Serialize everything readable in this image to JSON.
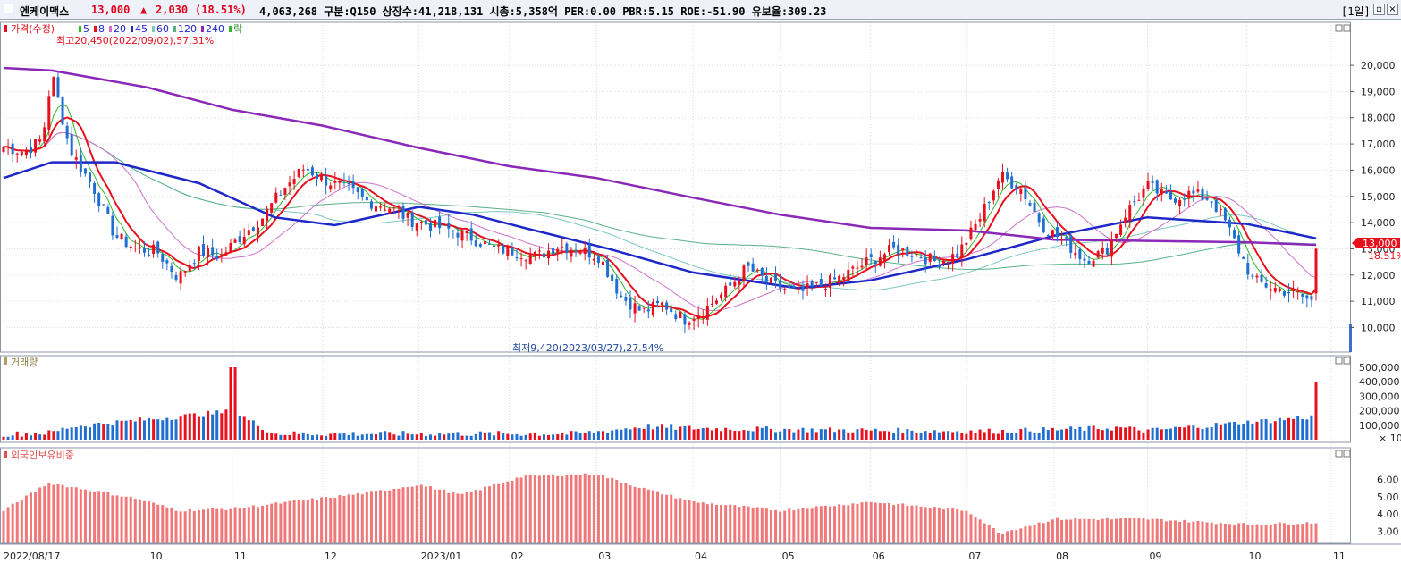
{
  "header": {
    "name": "엔케이맥스",
    "price": "13,000",
    "change_arrow": "▲",
    "change": "2,030",
    "change_pct": "(18.51%)",
    "info": "4,063,268  구분:Q150 상장수:41,218,131 시총:5,358억 PER:0.00 PBR:5.15 ROE:-51.90 유보율:309.23",
    "period": "[1일]"
  },
  "price_legend": {
    "label": "가격(수정)",
    "ma": [
      {
        "label": "5",
        "color": "#2db82d"
      },
      {
        "label": "8",
        "color": "#e8101c"
      },
      {
        "label": "20",
        "color": "#d070c8"
      },
      {
        "label": "45",
        "color": "#1e28c8"
      },
      {
        "label": "60",
        "color": "#7cc8c0"
      },
      {
        "label": "120",
        "color": "#58b088"
      },
      {
        "label": "240",
        "color": "#8a28b8"
      }
    ],
    "extra": "락"
  },
  "volume_legend": "거래량",
  "foreign_legend": "외국인보유비중",
  "annotations": {
    "high": "최고20,450(2022/09/02),57.31%",
    "low": "최저9,420(2023/03/27),27.54%"
  },
  "price_ticks": [
    "20,000",
    "19,000",
    "18,000",
    "17,000",
    "16,000",
    "15,000",
    "14,000",
    "13,000",
    "12,000",
    "11,000",
    "10,000"
  ],
  "current_label": "13,000",
  "current_pct": "18.51%",
  "volume_ticks": [
    "500,000",
    "400,000",
    "300,000",
    "200,000",
    "100,000"
  ],
  "volume_unit": "× 10",
  "foreign_ticks": [
    "6.00",
    "5.00",
    "4.00",
    "3.00"
  ],
  "x_labels": [
    "2022/08/17",
    "10",
    "11",
    "12",
    "2023/01",
    "02",
    "03",
    "04",
    "05",
    "06",
    "07",
    "08",
    "09",
    "10",
    "11"
  ],
  "colors": {
    "up": "#e8101c",
    "down": "#1f6fd0",
    "ma5": "#2db82d",
    "ma8": "#e8101c",
    "ma20": "#d070c8",
    "ma45": "#1e28c8",
    "ma60": "#7cc8c0",
    "ma120": "#58b088",
    "ma240": "#8a28b8",
    "foreign": "#f07878"
  },
  "chart_data": {
    "type": "line",
    "title": "",
    "x_start": "2022/08/17",
    "x_end": "2023/10/27",
    "y_range": [
      9300,
      20650
    ],
    "close_trace": [
      {
        "date": "2022-08-17",
        "close": 16900
      },
      {
        "date": "2022-08-24",
        "close": 16700
      },
      {
        "date": "2022-08-30",
        "close": 17200
      },
      {
        "date": "2022-09-02",
        "close": 19700
      },
      {
        "date": "2022-09-08",
        "close": 16800
      },
      {
        "date": "2022-09-16",
        "close": 15300
      },
      {
        "date": "2022-09-23",
        "close": 13500
      },
      {
        "date": "2022-09-30",
        "close": 13000
      },
      {
        "date": "2022-10-07",
        "close": 12900
      },
      {
        "date": "2022-10-14",
        "close": 11900
      },
      {
        "date": "2022-10-21",
        "close": 12900
      },
      {
        "date": "2022-10-28",
        "close": 12700
      },
      {
        "date": "2022-11-04",
        "close": 13500
      },
      {
        "date": "2022-11-11",
        "close": 14200
      },
      {
        "date": "2022-11-18",
        "close": 15300
      },
      {
        "date": "2022-11-25",
        "close": 16100
      },
      {
        "date": "2022-12-02",
        "close": 15600
      },
      {
        "date": "2022-12-09",
        "close": 15300
      },
      {
        "date": "2022-12-16",
        "close": 14800
      },
      {
        "date": "2022-12-23",
        "close": 14600
      },
      {
        "date": "2022-12-30",
        "close": 14100
      },
      {
        "date": "2023-01-06",
        "close": 13900
      },
      {
        "date": "2023-01-13",
        "close": 13700
      },
      {
        "date": "2023-01-20",
        "close": 13400
      },
      {
        "date": "2023-01-27",
        "close": 13000
      },
      {
        "date": "2023-02-03",
        "close": 12900
      },
      {
        "date": "2023-02-10",
        "close": 12700
      },
      {
        "date": "2023-02-17",
        "close": 13100
      },
      {
        "date": "2023-02-24",
        "close": 13000
      },
      {
        "date": "2023-03-03",
        "close": 12700
      },
      {
        "date": "2023-03-10",
        "close": 11200
      },
      {
        "date": "2023-03-17",
        "close": 10600
      },
      {
        "date": "2023-03-24",
        "close": 10900
      },
      {
        "date": "2023-03-31",
        "close": 10300
      },
      {
        "date": "2023-04-07",
        "close": 10700
      },
      {
        "date": "2023-04-14",
        "close": 11400
      },
      {
        "date": "2023-04-21",
        "close": 12300
      },
      {
        "date": "2023-04-28",
        "close": 11700
      },
      {
        "date": "2023-05-08",
        "close": 11300
      },
      {
        "date": "2023-05-15",
        "close": 11600
      },
      {
        "date": "2023-05-22",
        "close": 11900
      },
      {
        "date": "2023-05-31",
        "close": 12500
      },
      {
        "date": "2023-06-09",
        "close": 13000
      },
      {
        "date": "2023-06-16",
        "close": 12800
      },
      {
        "date": "2023-06-23",
        "close": 12500
      },
      {
        "date": "2023-06-30",
        "close": 12800
      },
      {
        "date": "2023-07-07",
        "close": 14100
      },
      {
        "date": "2023-07-14",
        "close": 15800
      },
      {
        "date": "2023-07-21",
        "close": 15300
      },
      {
        "date": "2023-07-28",
        "close": 13900
      },
      {
        "date": "2023-08-04",
        "close": 13300
      },
      {
        "date": "2023-08-11",
        "close": 12600
      },
      {
        "date": "2023-08-18",
        "close": 12900
      },
      {
        "date": "2023-08-25",
        "close": 14400
      },
      {
        "date": "2023-09-01",
        "close": 15400
      },
      {
        "date": "2023-09-08",
        "close": 14900
      },
      {
        "date": "2023-09-15",
        "close": 15100
      },
      {
        "date": "2023-09-22",
        "close": 14900
      },
      {
        "date": "2023-09-27",
        "close": 14000
      },
      {
        "date": "2023-10-06",
        "close": 11800
      },
      {
        "date": "2023-10-13",
        "close": 11500
      },
      {
        "date": "2023-10-20",
        "close": 11300
      },
      {
        "date": "2023-10-26",
        "close": 10970
      },
      {
        "date": "2023-10-27",
        "close": 13000
      }
    ],
    "ma240_trace": [
      {
        "date": "2022-08-17",
        "value": 19900
      },
      {
        "date": "2022-09-02",
        "value": 19800
      },
      {
        "date": "2022-10-04",
        "value": 19150
      },
      {
        "date": "2022-11-01",
        "value": 18300
      },
      {
        "date": "2022-12-01",
        "value": 17700
      },
      {
        "date": "2023-01-02",
        "value": 16850
      },
      {
        "date": "2023-02-01",
        "value": 16150
      },
      {
        "date": "2023-03-02",
        "value": 15700
      },
      {
        "date": "2023-04-03",
        "value": 14950
      },
      {
        "date": "2023-05-02",
        "value": 14300
      },
      {
        "date": "2023-06-01",
        "value": 13800
      },
      {
        "date": "2023-07-03",
        "value": 13700
      },
      {
        "date": "2023-08-01",
        "value": 13350
      },
      {
        "date": "2023-09-01",
        "value": 13300
      },
      {
        "date": "2023-10-04",
        "value": 13250
      },
      {
        "date": "2023-10-27",
        "value": 13150
      }
    ],
    "ma45_trace": [
      {
        "date": "2022-08-17",
        "value": 15700
      },
      {
        "date": "2022-09-02",
        "value": 16300
      },
      {
        "date": "2022-09-23",
        "value": 16300
      },
      {
        "date": "2022-10-21",
        "value": 15500
      },
      {
        "date": "2022-11-15",
        "value": 14200
      },
      {
        "date": "2022-12-05",
        "value": 13900
      },
      {
        "date": "2023-01-02",
        "value": 14600
      },
      {
        "date": "2023-01-20",
        "value": 14300
      },
      {
        "date": "2023-02-06",
        "value": 13800
      },
      {
        "date": "2023-03-06",
        "value": 13000
      },
      {
        "date": "2023-04-03",
        "value": 12100
      },
      {
        "date": "2023-05-08",
        "value": 11500
      },
      {
        "date": "2023-06-01",
        "value": 11800
      },
      {
        "date": "2023-07-03",
        "value": 12600
      },
      {
        "date": "2023-08-01",
        "value": 13500
      },
      {
        "date": "2023-09-01",
        "value": 14200
      },
      {
        "date": "2023-10-04",
        "value": 13950
      },
      {
        "date": "2023-10-27",
        "value": 13400
      }
    ],
    "volume_trace": [
      {
        "date": "2022-08-17",
        "value": 50000
      },
      {
        "date": "2022-09-02",
        "value": 80000
      },
      {
        "date": "2022-09-08",
        "value": 200000
      },
      {
        "date": "2022-11-01",
        "value": 500000
      },
      {
        "date": "2022-11-15",
        "value": 60000
      },
      {
        "date": "2023-02-24",
        "value": 60000
      },
      {
        "date": "2023-03-17",
        "value": 200000
      },
      {
        "date": "2023-03-27",
        "value": 180000
      },
      {
        "date": "2023-04-14",
        "value": 160000
      },
      {
        "date": "2023-06-09",
        "value": 120000
      },
      {
        "date": "2023-07-14",
        "value": 110000
      },
      {
        "date": "2023-08-23",
        "value": 180000
      },
      {
        "date": "2023-09-01",
        "value": 120000
      },
      {
        "date": "2023-10-27",
        "value": 400000
      }
    ],
    "foreign_trace": [
      {
        "date": "2022-08-17",
        "value": 4.2
      },
      {
        "date": "2022-09-01",
        "value": 5.8
      },
      {
        "date": "2022-09-30",
        "value": 4.9
      },
      {
        "date": "2022-10-14",
        "value": 4.2
      },
      {
        "date": "2022-11-01",
        "value": 4.3
      },
      {
        "date": "2022-12-15",
        "value": 5.2
      },
      {
        "date": "2023-01-02",
        "value": 5.7
      },
      {
        "date": "2023-01-16",
        "value": 5.1
      },
      {
        "date": "2023-02-06",
        "value": 6.2
      },
      {
        "date": "2023-03-02",
        "value": 6.3
      },
      {
        "date": "2023-03-17",
        "value": 5.5
      },
      {
        "date": "2023-04-03",
        "value": 4.7
      },
      {
        "date": "2023-05-02",
        "value": 4.2
      },
      {
        "date": "2023-06-01",
        "value": 4.7
      },
      {
        "date": "2023-07-03",
        "value": 4.2
      },
      {
        "date": "2023-07-14",
        "value": 2.9
      },
      {
        "date": "2023-08-01",
        "value": 3.7
      },
      {
        "date": "2023-09-01",
        "value": 3.7
      },
      {
        "date": "2023-10-04",
        "value": 3.4
      },
      {
        "date": "2023-10-27",
        "value": 3.5
      }
    ]
  }
}
